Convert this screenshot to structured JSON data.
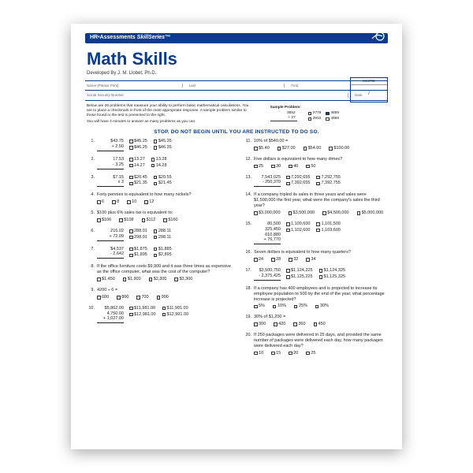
{
  "colors": {
    "brand": "#0b3c8c",
    "text": "#222",
    "bg": "#fff"
  },
  "header": {
    "brand": "HR•Assessments",
    "series": "SkillSeries",
    "tm": "™"
  },
  "title": "Math Skills",
  "developer": "Developed By J. M. Llobet, Ph.D.",
  "meta": {
    "name": "Name (Please Print)",
    "last": "Last",
    "first": "First",
    "mi": "M.I.",
    "ssn": "Social Security Number",
    "date": "Date"
  },
  "score": {
    "label": "SCORE",
    "sub": "/"
  },
  "intro": "Below are 20 problems that measure your ability to perform basic mathematical calculations. You are to place a checkmark in front of the most appropriate response. A sample problem similar to those found in the test is presented to the right.",
  "intro2": "You will have 4 minutes to answer as many problems as you can.",
  "sample": {
    "title": "Sample Problem:",
    "a": "3852",
    "b": "+ 37",
    "opts": [
      "3778",
      "3889",
      "3910",
      "4889"
    ],
    "checked": 1
  },
  "stop": "STOP. DO NOT BEGIN UNTIL YOU ARE INSTRUCTED TO DO SO.",
  "left": [
    {
      "n": "1.",
      "calc": [
        "$43.75",
        "+ 2.50"
      ],
      "opts": [
        "$45.25",
        "$45.35",
        "$46.25",
        "$46.35"
      ]
    },
    {
      "n": "2.",
      "calc": [
        "17.53",
        "- 3.25"
      ],
      "opts": [
        "13.27",
        "13.28",
        "14.27",
        "14.28"
      ]
    },
    {
      "n": "3.",
      "calc": [
        "$7.15",
        "x    3"
      ],
      "opts": [
        "$20.45",
        "$20.55",
        "$21.35",
        "$21.45"
      ]
    },
    {
      "n": "4.",
      "word": "Forty pennies is equivalent to how many nickels?",
      "opts": [
        "6",
        "8",
        "10",
        "12"
      ]
    },
    {
      "n": "5.",
      "word": "$100 plus 6% sales tax is equivalent to:",
      "opts": [
        "$106",
        "$108",
        "$112",
        "$160"
      ]
    },
    {
      "n": "6.",
      "calc": [
        "216.02",
        "+ 72.09"
      ],
      "opts": [
        "288.01",
        "288.11",
        "298.01",
        "298.11"
      ]
    },
    {
      "n": "7.",
      "calc": [
        "$4,537",
        "- 2,642"
      ],
      "opts": [
        "$1,875",
        "$1,885",
        "$1,895",
        "$2,895"
      ]
    },
    {
      "n": "8.",
      "word": "If the office furniture costs $9,900 and it was three times as expensive as the office computer, what was the cost of the computer?",
      "opts": [
        "$1,450",
        "$1,900",
        "$2,300",
        "$3,300"
      ]
    },
    {
      "n": "9.",
      "word": "4200 ÷ 6 =",
      "opts": [
        "600",
        "800",
        "700",
        "900"
      ]
    },
    {
      "n": "10.",
      "calc": [
        "$5,862.00",
        "4,750.00",
        "+ 1,027.00"
      ],
      "opts": [
        "$11,981.00",
        "$11,991.00",
        "$12,981.00",
        "$12,991.00"
      ]
    }
  ],
  "right": [
    {
      "n": "11.",
      "word": "10% of $540.00 =",
      "opts": [
        "$5.40",
        "$27.00",
        "$54.00",
        "$100.00"
      ]
    },
    {
      "n": "12.",
      "word": "Five dollars is equivalent to how many dimes?",
      "opts": [
        "25",
        "30",
        "40",
        "50"
      ]
    },
    {
      "n": "13.",
      "calc": [
        "7,543,025",
        "- 250,370"
      ],
      "opts": [
        "7,292,655",
        "7,292,755",
        "7,392,655",
        "7,392,755"
      ]
    },
    {
      "n": "14.",
      "word": "If a company tripled its sales in three years and sales were $1,500,000 the first year, what were the company's sales the third year?",
      "opts": [
        "$3,000,000",
        "$3,500,000",
        "$4,500,000",
        "$5,000,000"
      ]
    },
    {
      "n": "15.",
      "calc": [
        "80,500",
        "325,450",
        "610,880",
        "+ 76,770"
      ],
      "opts": [
        "1,100,600",
        "1,101,500",
        "1,102,600",
        "1,103,600"
      ]
    },
    {
      "n": "16.",
      "word": "Seven dollars is equivalent to how many quarters?",
      "opts": [
        "24",
        "28",
        "32",
        "34"
      ]
    },
    {
      "n": "17.",
      "calc": [
        "$3,500,750",
        "- 2,375,425"
      ],
      "opts": [
        "$1,124,225",
        "$1,124,325",
        "$1,125,225",
        "$1,125,325"
      ]
    },
    {
      "n": "18.",
      "word": "If a company has 400 employees and is projected to increase its employee population to 500 by the end of the year, what percentage increase is projected?",
      "opts": [
        "5%",
        "10%",
        "25%",
        "30%"
      ]
    },
    {
      "n": "19.",
      "word": "30% of $1,200 =",
      "opts": [
        "300",
        "420",
        "360",
        "450"
      ]
    },
    {
      "n": "20.",
      "word": "If 250 packages were delivered in 25 days, and provided the same number of packages were delivered each day, how many packages were delivered each day?",
      "opts": [
        "10",
        "15",
        "20",
        "25"
      ]
    }
  ]
}
